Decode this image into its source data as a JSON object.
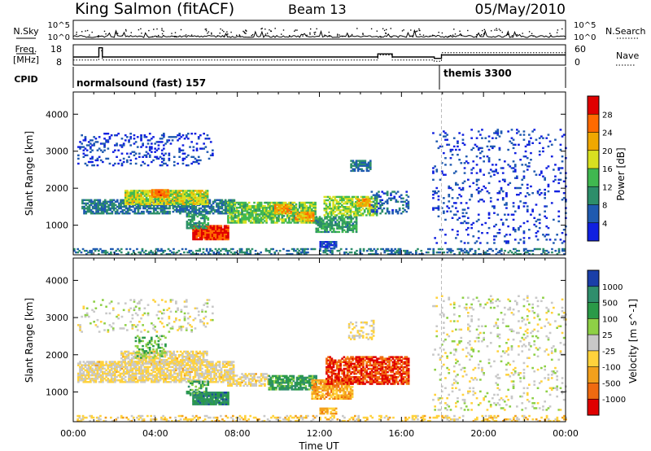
{
  "header": {
    "station": "King Salmon (fitACF)",
    "beam": "Beam 13",
    "date": "05/May/2010"
  },
  "chart_data": [
    {
      "type": "line",
      "panel": "noise",
      "left_label": "N.Sky",
      "right_label": "N.Search",
      "left_ticks": [
        "10^5",
        "10^0"
      ],
      "right_ticks": [
        "10^5",
        "10^0"
      ],
      "log_scale": true
    },
    {
      "type": "line",
      "panel": "frequency",
      "left_label_line1": "Freq.",
      "left_label_line2": "[MHz]",
      "right_label": "Nave",
      "left_ticks": [
        18,
        8
      ],
      "right_ticks": [
        60,
        0
      ],
      "freq_series": {
        "x": [
          0,
          1.25,
          1.25,
          1.42,
          1.42,
          14.85,
          14.85,
          15.55,
          15.55,
          17.6,
          17.6,
          17.95,
          17.95,
          24
        ],
        "y": [
          11.8,
          11.8,
          17.2,
          17.2,
          11.8,
          11.8,
          13.6,
          13.6,
          11.8,
          11.8,
          11.0,
          11.0,
          13.0,
          13.0
        ]
      },
      "nave_series": {
        "x": [
          0,
          1.25,
          1.25,
          1.42,
          1.42,
          14.85,
          14.85,
          15.55,
          15.55,
          17.6,
          17.6,
          17.95,
          17.95,
          24
        ],
        "y": [
          12,
          12,
          45,
          45,
          12,
          12,
          30,
          30,
          12,
          12,
          8,
          8,
          38,
          38
        ]
      }
    },
    {
      "type": "table",
      "panel": "cpid",
      "label": "CPID",
      "segments": [
        {
          "start": 0,
          "end": 17.95,
          "text": "normalsound (fast) 157"
        },
        {
          "start": 17.95,
          "end": 24,
          "text": "themis 3300"
        }
      ]
    },
    {
      "type": "heatmap",
      "panel": "power",
      "ylabel": "Slant Range [km]",
      "yticks": [
        1000,
        2000,
        3000,
        4000
      ],
      "ylim": [
        200,
        4600
      ],
      "xlim": [
        0,
        24
      ],
      "colorbar_label": "Power [dB]",
      "colorbar_ticks": [
        "28",
        "24",
        "20",
        "16",
        "12",
        "8",
        "4"
      ],
      "colorbar_colors": [
        "#e00000",
        "#ff6a00",
        "#f0a800",
        "#d8e020",
        "#40b850",
        "#2d8e6a",
        "#1f5ab0",
        "#1020e0"
      ],
      "regions": [
        {
          "t0": 0.2,
          "t1": 6.8,
          "r0": 2600,
          "r1": 3500,
          "density": 0.18,
          "level": 0.12
        },
        {
          "t0": 0.4,
          "t1": 7.8,
          "r0": 1300,
          "r1": 1700,
          "density": 0.75,
          "level": 0.25
        },
        {
          "t0": 2.5,
          "t1": 6.5,
          "r0": 1550,
          "r1": 1950,
          "density": 0.9,
          "level": 0.55
        },
        {
          "t0": 3.8,
          "t1": 4.6,
          "r0": 1750,
          "r1": 1950,
          "density": 0.9,
          "level": 0.78
        },
        {
          "t0": 5.8,
          "t1": 7.5,
          "r0": 600,
          "r1": 1000,
          "density": 0.95,
          "level": 0.9
        },
        {
          "t0": 5.5,
          "t1": 6.6,
          "r0": 900,
          "r1": 1300,
          "density": 0.6,
          "level": 0.35
        },
        {
          "t0": 7.5,
          "t1": 11.8,
          "r0": 1050,
          "r1": 1600,
          "density": 0.8,
          "level": 0.45
        },
        {
          "t0": 9.8,
          "t1": 10.6,
          "r0": 1300,
          "r1": 1550,
          "density": 0.9,
          "level": 0.7
        },
        {
          "t0": 10.8,
          "t1": 11.7,
          "r0": 1100,
          "r1": 1350,
          "density": 0.9,
          "level": 0.68
        },
        {
          "t0": 11.8,
          "t1": 13.8,
          "r0": 800,
          "r1": 1250,
          "density": 0.7,
          "level": 0.35
        },
        {
          "t0": 12.2,
          "t1": 14.8,
          "r0": 1250,
          "r1": 1750,
          "density": 0.7,
          "level": 0.5
        },
        {
          "t0": 13.8,
          "t1": 14.4,
          "r0": 1500,
          "r1": 1700,
          "density": 0.9,
          "level": 0.72
        },
        {
          "t0": 14.5,
          "t1": 16.3,
          "r0": 1300,
          "r1": 1900,
          "density": 0.35,
          "level": 0.2
        },
        {
          "t0": 13.5,
          "t1": 14.5,
          "r0": 2450,
          "r1": 2750,
          "density": 0.6,
          "level": 0.25
        },
        {
          "t0": 12.0,
          "t1": 12.8,
          "r0": 350,
          "r1": 550,
          "density": 0.8,
          "level": 0.15
        },
        {
          "t0": 17.5,
          "t1": 24,
          "r0": 500,
          "r1": 3600,
          "density": 0.1,
          "level": 0.12
        },
        {
          "t0": 0,
          "t1": 24,
          "r0": 200,
          "r1": 380,
          "density": 0.35,
          "level": 0.25
        }
      ]
    },
    {
      "type": "heatmap",
      "panel": "velocity",
      "ylabel": "Slant Range [km]",
      "xlabel": "Time UT",
      "yticks": [
        1000,
        2000,
        3000,
        4000
      ],
      "ylim": [
        200,
        4600
      ],
      "xlim": [
        0,
        24
      ],
      "xtick_labels": [
        "00:00",
        "04:00",
        "08:00",
        "12:00",
        "16:00",
        "20:00",
        "00:00"
      ],
      "colorbar_label": "Velocity [m s^-1]",
      "colorbar_ticks": [
        "1000",
        "500",
        "100",
        "25",
        "-25",
        "-100",
        "-500",
        "-1000"
      ],
      "colorbar_colors": [
        "#1a3fa8",
        "#2f8e6c",
        "#2a9a48",
        "#8ed046",
        "#c8c8c8",
        "#ffd23c",
        "#f3a01c",
        "#f06a10",
        "#e00000"
      ],
      "regions": [
        {
          "t0": 0.2,
          "t1": 6.8,
          "r0": 2600,
          "r1": 3500,
          "density": 0.14,
          "level": 0.5
        },
        {
          "t0": 0.2,
          "t1": 7.8,
          "r0": 1250,
          "r1": 1800,
          "density": 0.75,
          "level": 0.44
        },
        {
          "t0": 2.3,
          "t1": 6.5,
          "r0": 1750,
          "r1": 2100,
          "density": 0.7,
          "level": 0.44
        },
        {
          "t0": 3.0,
          "t1": 4.5,
          "r0": 1900,
          "r1": 2500,
          "density": 0.35,
          "level": 0.66
        },
        {
          "t0": 5.8,
          "t1": 7.5,
          "r0": 650,
          "r1": 1000,
          "density": 0.95,
          "level": 0.8
        },
        {
          "t0": 5.5,
          "t1": 6.6,
          "r0": 900,
          "r1": 1300,
          "density": 0.5,
          "level": 0.74
        },
        {
          "t0": 7.5,
          "t1": 9.5,
          "r0": 1150,
          "r1": 1500,
          "density": 0.6,
          "level": 0.44
        },
        {
          "t0": 9.5,
          "t1": 11.8,
          "r0": 1050,
          "r1": 1450,
          "density": 0.8,
          "level": 0.74
        },
        {
          "t0": 11.6,
          "t1": 13.6,
          "r0": 800,
          "r1": 1300,
          "density": 0.8,
          "level": 0.3
        },
        {
          "t0": 12.3,
          "t1": 16.3,
          "r0": 1200,
          "r1": 1950,
          "density": 0.75,
          "level": 0.12
        },
        {
          "t0": 13.4,
          "t1": 14.6,
          "r0": 2400,
          "r1": 2900,
          "density": 0.35,
          "level": 0.44
        },
        {
          "t0": 12.0,
          "t1": 12.8,
          "r0": 400,
          "r1": 550,
          "density": 0.85,
          "level": 0.3
        },
        {
          "t0": 17.5,
          "t1": 24,
          "r0": 500,
          "r1": 3600,
          "density": 0.1,
          "level": 0.5
        },
        {
          "t0": 0,
          "t1": 24,
          "r0": 200,
          "r1": 380,
          "density": 0.3,
          "level": 0.4
        }
      ]
    }
  ]
}
